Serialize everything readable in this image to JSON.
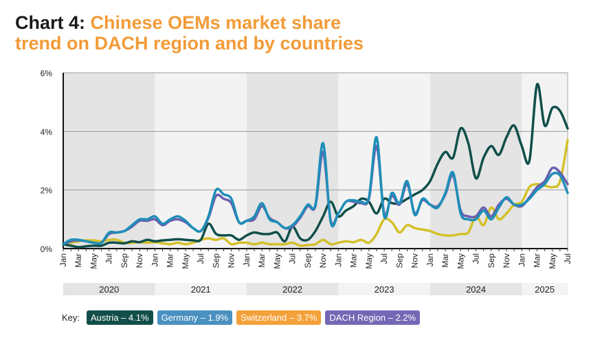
{
  "title": {
    "prefix": "Chart 4:",
    "main_line1": "Chinese OEMs market share",
    "main_line2": "trend on DACH region and by countries"
  },
  "colors": {
    "title_accent": "#f29b38",
    "Austria": "#0f4f4a",
    "Germany": "#1d8fb8",
    "Switzerland": "#d4c02a",
    "DACH Region": "#6a5fb0",
    "band_dark": "#e4e4e4",
    "band_light": "#f3f3f3"
  },
  "legend": {
    "label": "Key:",
    "items": [
      {
        "text": "Austria – 4.1%",
        "color": "#134f4a"
      },
      {
        "text": "Germany – 1.9%",
        "color": "#4a90c0"
      },
      {
        "text": "Switzerland – 3.7%",
        "color": "#f4a13a"
      },
      {
        "text": "DACH Region – 2.2%",
        "color": "#7468b5"
      }
    ]
  },
  "chart_data": {
    "type": "line",
    "start": "2020-01",
    "end": "2025-07",
    "x_tick_labels": [
      "Jan",
      "Mar",
      "May",
      "Jul",
      "Sep",
      "Nov"
    ],
    "years": [
      "2020",
      "2021",
      "2022",
      "2023",
      "2024",
      "2025"
    ],
    "y_ticks": [
      "0%",
      "2%",
      "4%",
      "6%"
    ],
    "ylim": [
      0,
      6
    ],
    "grid": "horizontal",
    "series": [
      {
        "name": "Austria",
        "values": [
          0.15,
          0.1,
          0.05,
          0.08,
          0.1,
          0.1,
          0.2,
          0.2,
          0.18,
          0.25,
          0.22,
          0.3,
          0.25,
          0.28,
          0.3,
          0.32,
          0.3,
          0.28,
          0.3,
          0.85,
          0.5,
          0.45,
          0.45,
          0.3,
          0.45,
          0.55,
          0.5,
          0.5,
          0.55,
          0.25,
          0.75,
          0.35,
          0.3,
          0.6,
          1.1,
          1.6,
          1.1,
          1.3,
          1.45,
          1.7,
          1.6,
          1.2,
          1.7,
          1.55,
          1.55,
          1.7,
          1.85,
          2.0,
          2.3,
          2.9,
          3.3,
          3.1,
          4.1,
          3.6,
          2.4,
          3.1,
          3.5,
          3.2,
          3.8,
          4.2,
          3.5,
          3.0,
          5.6,
          4.2,
          4.8,
          4.7,
          4.1
        ]
      },
      {
        "name": "Germany",
        "values": [
          0.15,
          0.3,
          0.3,
          0.25,
          0.2,
          0.2,
          0.55,
          0.55,
          0.6,
          0.8,
          1.0,
          1.0,
          1.1,
          0.85,
          1.0,
          1.1,
          0.95,
          0.7,
          0.6,
          1.1,
          2.0,
          1.85,
          1.7,
          0.9,
          0.95,
          1.1,
          1.55,
          1.0,
          0.9,
          0.7,
          0.8,
          1.1,
          1.5,
          1.5,
          3.6,
          0.9,
          1.2,
          1.6,
          1.65,
          1.6,
          1.75,
          3.8,
          1.1,
          1.9,
          1.55,
          2.3,
          1.15,
          1.7,
          1.5,
          1.4,
          1.9,
          2.6,
          1.2,
          1.0,
          1.0,
          1.3,
          1.0,
          1.4,
          1.75,
          1.5,
          1.5,
          1.7,
          2.0,
          2.2,
          2.55,
          2.5,
          1.9
        ]
      },
      {
        "name": "Switzerland",
        "values": [
          0.15,
          0.2,
          0.25,
          0.28,
          0.28,
          0.25,
          0.3,
          0.3,
          0.2,
          0.2,
          0.22,
          0.2,
          0.22,
          0.18,
          0.15,
          0.2,
          0.15,
          0.2,
          0.3,
          0.35,
          0.3,
          0.35,
          0.15,
          0.2,
          0.2,
          0.15,
          0.2,
          0.15,
          0.15,
          0.15,
          0.2,
          0.1,
          0.12,
          0.15,
          0.3,
          0.15,
          0.2,
          0.25,
          0.22,
          0.3,
          0.2,
          0.5,
          1.0,
          0.9,
          0.55,
          0.8,
          0.7,
          0.65,
          0.6,
          0.5,
          0.45,
          0.45,
          0.5,
          0.55,
          1.1,
          0.8,
          1.4,
          1.0,
          1.2,
          1.5,
          1.6,
          2.1,
          2.2,
          2.15,
          2.1,
          2.3,
          3.7
        ]
      },
      {
        "name": "DACH Region",
        "values": [
          0.15,
          0.25,
          0.28,
          0.25,
          0.2,
          0.2,
          0.5,
          0.55,
          0.6,
          0.75,
          0.95,
          0.95,
          1.0,
          0.8,
          0.95,
          1.0,
          0.9,
          0.7,
          0.6,
          1.05,
          1.8,
          1.7,
          1.55,
          0.9,
          0.95,
          1.0,
          1.45,
          1.05,
          0.9,
          0.7,
          0.75,
          1.05,
          1.45,
          1.45,
          3.3,
          0.95,
          1.2,
          1.6,
          1.6,
          1.55,
          1.7,
          3.5,
          1.2,
          1.8,
          1.5,
          2.2,
          1.2,
          1.65,
          1.5,
          1.45,
          1.85,
          2.5,
          1.3,
          1.1,
          1.1,
          1.4,
          1.1,
          1.5,
          1.7,
          1.5,
          1.45,
          1.75,
          2.1,
          2.3,
          2.75,
          2.6,
          2.2
        ]
      }
    ]
  }
}
